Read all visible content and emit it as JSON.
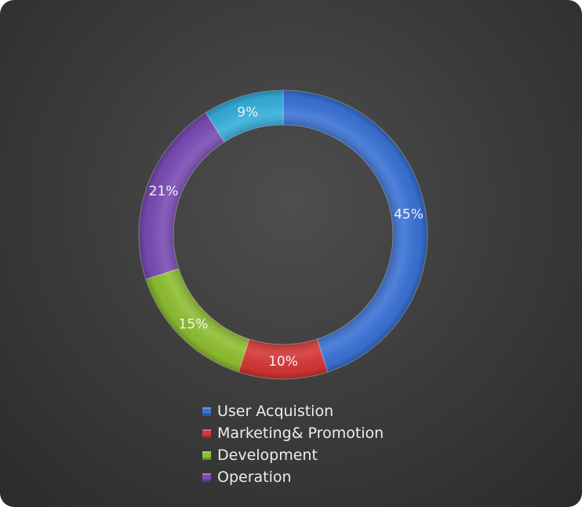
{
  "chart_data": {
    "type": "pie",
    "variant": "doughnut",
    "title": "",
    "categories": [
      "User Acquistion",
      "Marketing& Promotion",
      "Development",
      "Operation",
      ""
    ],
    "values": [
      45,
      10,
      15,
      21,
      9
    ],
    "data_labels": [
      "45%",
      "10%",
      "15%",
      "21%",
      "9%"
    ],
    "colors": [
      "#3a73d6",
      "#d63636",
      "#8fbf32",
      "#7a4cb5",
      "#34aedc"
    ],
    "legend": {
      "placement": "bottom",
      "entries": [
        "User Acquistion",
        "Marketing& Promotion",
        "Development",
        "Operation"
      ]
    }
  }
}
